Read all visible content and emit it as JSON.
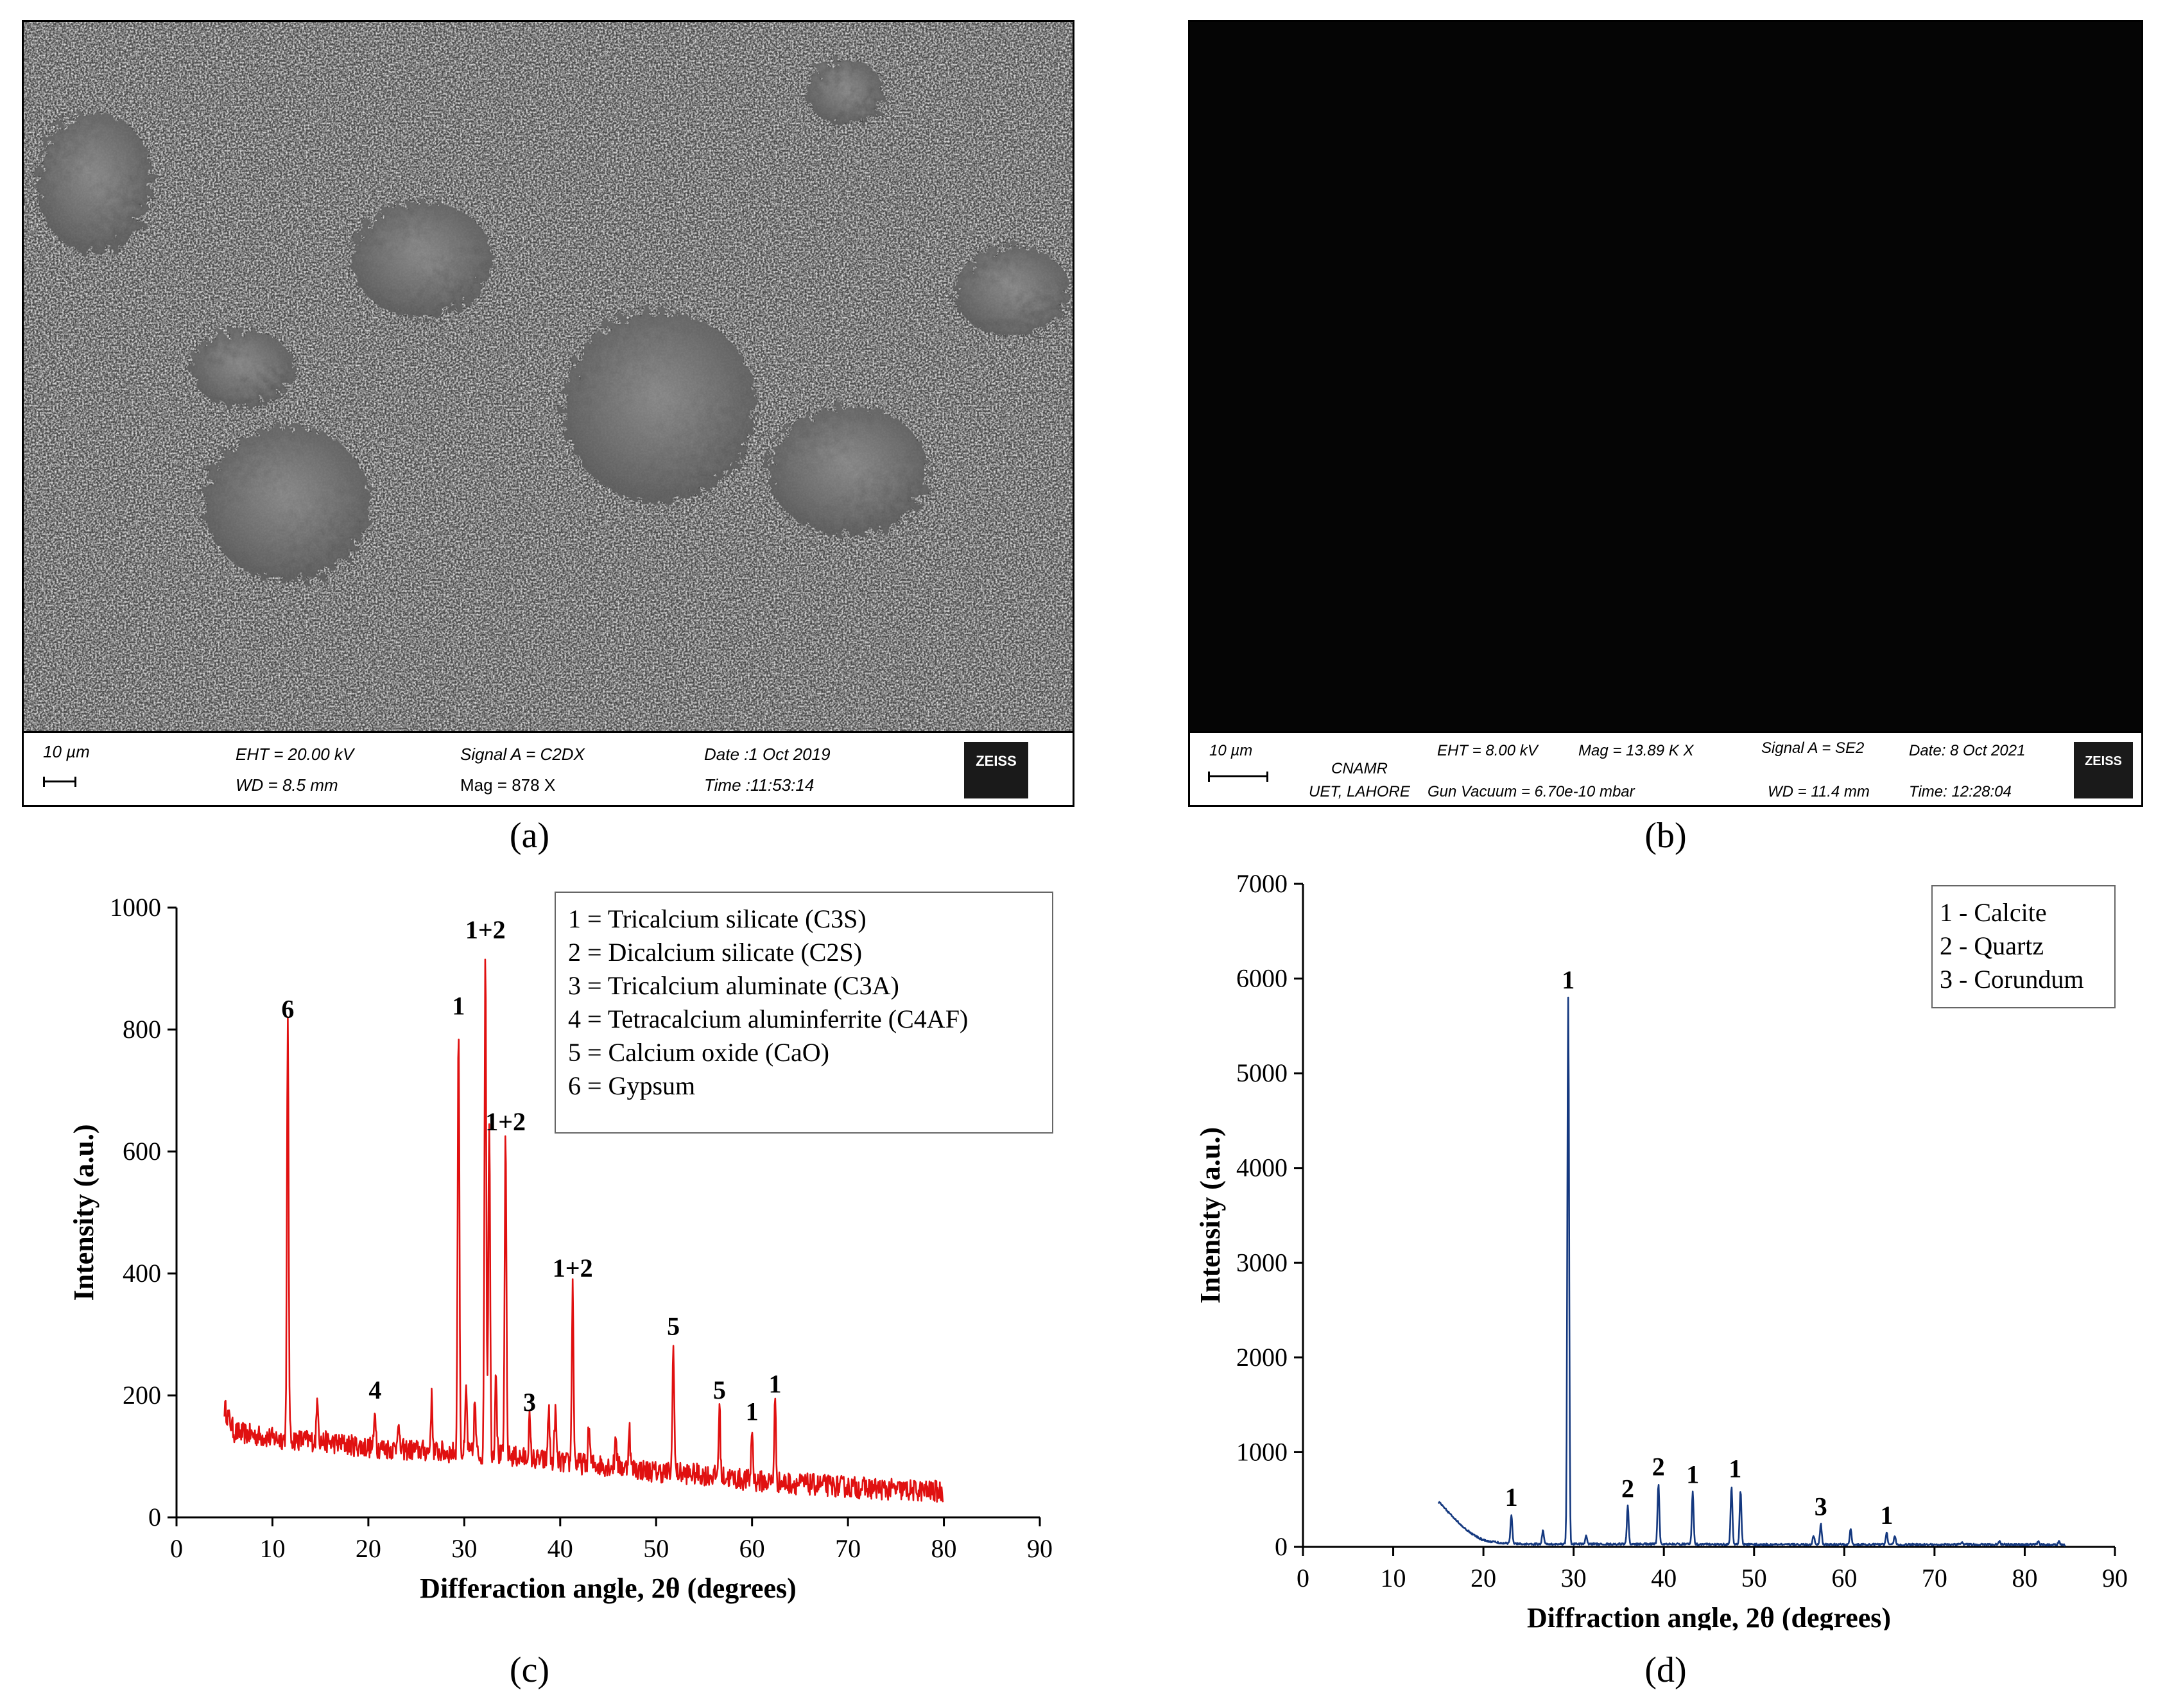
{
  "panels": {
    "a": {
      "caption": "(a)",
      "sem": {
        "scale_bar": "10 µm",
        "eht": "EHT = 20.00 kV",
        "wd": "WD =  8.5 mm",
        "signal": "Signal A = C2DX",
        "mag": "Mag =  878 X",
        "date": "Date :1 Oct 2019",
        "time": "Time :11:53:14",
        "logo": "ZEISS"
      }
    },
    "b": {
      "caption": "(b)",
      "sem": {
        "scale_bar": "10 µm",
        "eht": "EHT =  8.00 kV",
        "mag": "Mag =   13.89 K X",
        "signal": "Signal A = SE2",
        "date": "Date: 8 Oct 2021",
        "org1": "CNAMR",
        "org2": "UET, LAHORE",
        "gun": "Gun Vacuum = 6.70e-10 mbar",
        "wd": "WD = 11.4 mm",
        "time": "Time: 12:28:04",
        "logo": "ZEISS"
      }
    },
    "c": {
      "caption": "(c)"
    },
    "d": {
      "caption": "(d)"
    }
  },
  "colors": {
    "chart_c": "#e01010",
    "chart_d": "#14387f"
  },
  "chart_data": [
    {
      "id": "c",
      "type": "line",
      "xlabel": "Differaction angle, 2θ (degrees)",
      "ylabel": "Intensity (a.u.)",
      "xlim": [
        0,
        90
      ],
      "ylim": [
        0,
        1000
      ],
      "xticks": [
        0,
        10,
        20,
        30,
        40,
        50,
        60,
        70,
        80,
        90
      ],
      "yticks": [
        0,
        200,
        400,
        600,
        800,
        1000
      ],
      "grid": false,
      "legend_position": "top-right",
      "legend": [
        "1 = Tricalcium silicate (C3S)",
        "2 = Dicalcium silicate (C2S)",
        "3 = Tricalcium aluminate (C3A)",
        "4 = Tetracalcium aluminferrite (C4AF)",
        "5 = Calcium oxide (CaO)",
        "6 = Gypsum"
      ],
      "background": [
        [
          5,
          180
        ],
        [
          6,
          140
        ],
        [
          8,
          135
        ],
        [
          10,
          130
        ],
        [
          15,
          125
        ],
        [
          20,
          115
        ],
        [
          25,
          110
        ],
        [
          30,
          105
        ],
        [
          35,
          100
        ],
        [
          40,
          90
        ],
        [
          45,
          85
        ],
        [
          50,
          75
        ],
        [
          55,
          70
        ],
        [
          60,
          60
        ],
        [
          65,
          55
        ],
        [
          70,
          50
        ],
        [
          75,
          45
        ],
        [
          80,
          42
        ]
      ],
      "peaks": [
        {
          "x": 11.6,
          "y": 805
        },
        {
          "x": 14.7,
          "y": 200
        },
        {
          "x": 20.7,
          "y": 180
        },
        {
          "x": 23.1,
          "y": 160
        },
        {
          "x": 26.6,
          "y": 195
        },
        {
          "x": 29.4,
          "y": 810
        },
        {
          "x": 30.2,
          "y": 210
        },
        {
          "x": 31.1,
          "y": 190
        },
        {
          "x": 32.2,
          "y": 935
        },
        {
          "x": 32.6,
          "y": 660
        },
        {
          "x": 33.3,
          "y": 250
        },
        {
          "x": 34.3,
          "y": 620
        },
        {
          "x": 36.8,
          "y": 160
        },
        {
          "x": 38.8,
          "y": 180
        },
        {
          "x": 39.5,
          "y": 175
        },
        {
          "x": 41.3,
          "y": 380
        },
        {
          "x": 43.0,
          "y": 150
        },
        {
          "x": 45.8,
          "y": 140
        },
        {
          "x": 47.2,
          "y": 150
        },
        {
          "x": 51.8,
          "y": 285
        },
        {
          "x": 56.6,
          "y": 180
        },
        {
          "x": 60.0,
          "y": 145
        },
        {
          "x": 62.4,
          "y": 190
        }
      ],
      "annotations": [
        {
          "text": "6",
          "x": 11.6,
          "y": 805
        },
        {
          "text": "4",
          "x": 20.7,
          "y": 180
        },
        {
          "text": "1",
          "x": 29.4,
          "y": 810
        },
        {
          "text": "1+2",
          "x": 32.2,
          "y": 935
        },
        {
          "text": "1+2",
          "x": 34.3,
          "y": 620
        },
        {
          "text": "3",
          "x": 36.8,
          "y": 160
        },
        {
          "text": "1+2",
          "x": 41.3,
          "y": 380
        },
        {
          "text": "5",
          "x": 51.8,
          "y": 285
        },
        {
          "text": "5",
          "x": 56.6,
          "y": 180
        },
        {
          "text": "1",
          "x": 60.0,
          "y": 145
        },
        {
          "text": "1",
          "x": 62.4,
          "y": 190
        }
      ]
    },
    {
      "id": "d",
      "type": "line",
      "xlabel": "Diffraction angle, 2θ (degrees)",
      "ylabel": "Intensity (a.u.)",
      "xlim": [
        0,
        90
      ],
      "ylim": [
        0,
        7000
      ],
      "xticks": [
        0,
        10,
        20,
        30,
        40,
        50,
        60,
        70,
        80,
        90
      ],
      "yticks": [
        0,
        1000,
        2000,
        3000,
        4000,
        5000,
        6000,
        7000
      ],
      "grid": false,
      "legend_position": "top-right",
      "legend": [
        "1 - Calcite",
        "2 - Quartz",
        "3 - Corundum"
      ],
      "background": [
        [
          15,
          480
        ],
        [
          16,
          380
        ],
        [
          17,
          280
        ],
        [
          18,
          190
        ],
        [
          19,
          120
        ],
        [
          20,
          70
        ],
        [
          22,
          40
        ],
        [
          25,
          30
        ],
        [
          30,
          30
        ],
        [
          40,
          30
        ],
        [
          50,
          25
        ],
        [
          60,
          25
        ],
        [
          70,
          25
        ],
        [
          80,
          25
        ],
        [
          84.5,
          20
        ]
      ],
      "peaks": [
        {
          "x": 23.1,
          "y": 340
        },
        {
          "x": 26.6,
          "y": 180
        },
        {
          "x": 29.4,
          "y": 5800
        },
        {
          "x": 31.4,
          "y": 120
        },
        {
          "x": 36.0,
          "y": 430
        },
        {
          "x": 39.4,
          "y": 660
        },
        {
          "x": 43.2,
          "y": 580
        },
        {
          "x": 47.5,
          "y": 640
        },
        {
          "x": 48.5,
          "y": 600
        },
        {
          "x": 56.6,
          "y": 120
        },
        {
          "x": 57.4,
          "y": 240
        },
        {
          "x": 60.7,
          "y": 190
        },
        {
          "x": 64.7,
          "y": 150
        },
        {
          "x": 65.6,
          "y": 110
        },
        {
          "x": 73.0,
          "y": 50
        },
        {
          "x": 77.2,
          "y": 60
        },
        {
          "x": 81.5,
          "y": 55
        },
        {
          "x": 83.8,
          "y": 60
        }
      ],
      "annotations": [
        {
          "text": "1",
          "x": 23.1,
          "y": 340
        },
        {
          "text": "1",
          "x": 29.4,
          "y": 5800
        },
        {
          "text": "2",
          "x": 36.0,
          "y": 430
        },
        {
          "text": "2",
          "x": 39.4,
          "y": 660
        },
        {
          "text": "1",
          "x": 43.2,
          "y": 580
        },
        {
          "text": "1",
          "x": 47.9,
          "y": 640
        },
        {
          "text": "3",
          "x": 57.4,
          "y": 240
        },
        {
          "text": "1",
          "x": 64.7,
          "y": 150
        }
      ]
    }
  ]
}
